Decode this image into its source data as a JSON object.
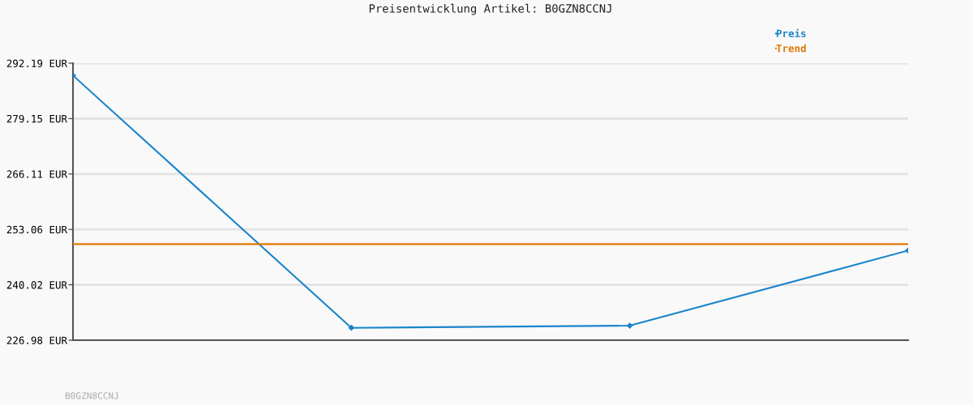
{
  "chart_data": {
    "type": "line",
    "title": "Preisentwicklung Artikel: B0GZN8CCNJ",
    "categories": [
      null,
      null,
      null,
      null
    ],
    "series": [
      {
        "name": "Preis",
        "color": "#1a84cc",
        "values": [
          289.3,
          229.9,
          230.4,
          248.1
        ],
        "marker": "diamond"
      },
      {
        "name": "Trend",
        "color": "#e07800",
        "values": [
          249.6,
          249.6,
          249.6,
          249.6
        ]
      }
    ],
    "ylim": [
      226.98,
      292.19
    ],
    "yticks": [
      {
        "value": 226.98,
        "label": "226.98 EUR"
      },
      {
        "value": 240.02,
        "label": "240.02 EUR"
      },
      {
        "value": 253.06,
        "label": "253.06 EUR"
      },
      {
        "value": 266.11,
        "label": "266.11 EUR"
      },
      {
        "value": 279.15,
        "label": "279.15 EUR"
      },
      {
        "value": 292.19,
        "label": "292.19 EUR"
      }
    ],
    "grid": "y",
    "legend": "top right",
    "annotations": [
      "B0GZN8CCNJ"
    ]
  }
}
